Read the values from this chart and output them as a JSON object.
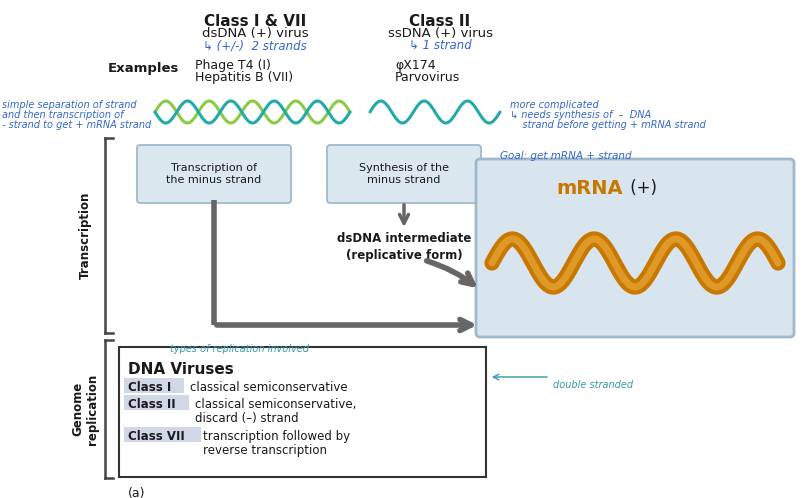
{
  "title_class1_7": "Class I & VII",
  "subtitle_class1_7": "dsDNA (+) virus",
  "handwritten_class1_7": "↳ (+/-)  2 strands",
  "title_class2": "Class II",
  "subtitle_class2": "ssDNA (+) virus",
  "handwritten_class2": "↳ 1 strand",
  "examples_label": "Examples",
  "example_class1_7_line1": "Phage T4 (I)",
  "example_class1_7_line2": "Hepatitis B (VII)",
  "example_class2_line1": "φX174",
  "example_class2_line2": "Parvovirus",
  "handwritten_left_line1": "simple separation of strand",
  "handwritten_left_line2": "and then transcription of",
  "handwritten_left_line3": "- strand to get + mRNA strand",
  "handwritten_right_line1": "more complicated",
  "handwritten_right_line2": "↳ needs synthesis of  –  DNA",
  "handwritten_right_line3": "    strand before getting + mRNA strand",
  "box1_text": "Transcription of\nthe minus strand",
  "box2_text": "Synthesis of the\nminus strand",
  "dsdna_label": "dsDNA intermediate\n(replicative form)",
  "transcription_label": "Transcription",
  "genome_replication_label": "Genome\nreplication",
  "mrna_label_bold": "mRNA",
  "mrna_label_normal": " (+)",
  "goal_label": "Goal: get mRNA + strand",
  "types_label": "types of replication involved",
  "dna_viruses_title": "DNA Viruses",
  "fig_label": "(a)",
  "bg_color": "#ffffff",
  "dark_text": "#1a1a1a",
  "blue_hw": "#3366cc",
  "teal_color": "#3399aa",
  "box_fill": "#dce8f0",
  "box_edge": "#9ab5c8",
  "arrow_color": "#666666",
  "orange_dark": "#c87800",
  "orange_mid": "#e09020",
  "orange_light": "#f0b040",
  "mrna_box_fill": "#d8e5ef",
  "mrna_box_edge": "#a0b8cc",
  "class_highlight": "#d0d8e8"
}
